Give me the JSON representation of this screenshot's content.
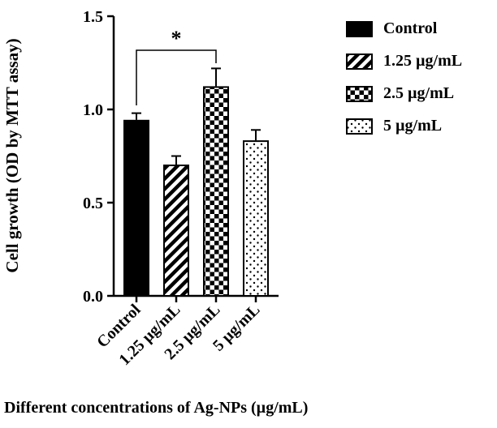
{
  "chart_data": {
    "type": "bar",
    "title": "",
    "ylabel": "Cell growth (OD by MTT assay)",
    "xlabel": "Different concentrations of Ag-NPs (µg/mL)",
    "categories": [
      "Control",
      "1.25 µg/mL",
      "2.5 µg/mL",
      "5 µg/mL"
    ],
    "values": [
      0.94,
      0.7,
      1.12,
      0.83
    ],
    "errors": [
      0.04,
      0.05,
      0.1,
      0.06
    ],
    "ylim": [
      0.0,
      1.5
    ],
    "yticks": [
      "0.0",
      "0.5",
      "1.0",
      "1.5"
    ],
    "bar_color": "#000000",
    "bar_patterns": [
      "solid",
      "diagonal-stripes",
      "checkerboard",
      "dots"
    ],
    "grid": false,
    "legend": {
      "position": "right",
      "items": [
        "Control",
        "1.25 µg/mL",
        "2.5 µg/mL",
        "5 µg/mL"
      ]
    },
    "significance": {
      "from": "Control",
      "to": "2.5 µg/mL",
      "label": "*"
    }
  }
}
